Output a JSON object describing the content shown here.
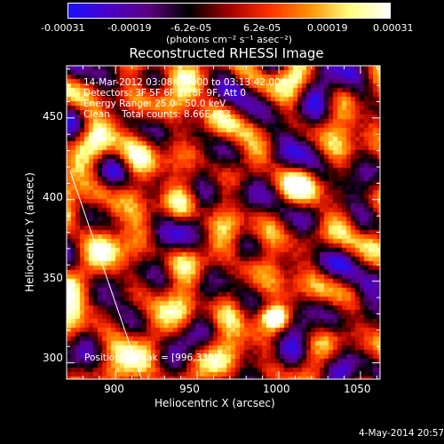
{
  "colorbar": {
    "tick_labels": [
      "-0.00031",
      "-0.00019",
      "-6.2e-05",
      "6.2e-05",
      "0.00019",
      "0.00031"
    ],
    "units_label": "(photons cm⁻² s⁻¹ asec⁻²)",
    "range": [
      -0.00031,
      0.00031
    ],
    "colors": [
      "#1a12ff",
      "#4a00c8",
      "#5c0080",
      "#000000",
      "#a00000",
      "#ff3000",
      "#ff9000",
      "#ffff80",
      "#ffffff"
    ]
  },
  "image": {
    "title": "Reconstructed RHESSI Image",
    "info_lines": [
      "14-Mar-2012 03:08:24.000 to 03:13:42.000",
      "Detectors: 3F 5F 6F 7F 8F 9F, Att 0",
      "Energy Range: 25.0 - 50.0 keV",
      "Clean    Total counts: 8.66E+03"
    ],
    "peak_label": "Position of Peak = [996,330]",
    "peak": {
      "x": 996,
      "y": 330
    }
  },
  "axes": {
    "xlabel": "Heliocentric X (arcsec)",
    "ylabel": "Heliocentric Y (arcsec)",
    "xticks": [
      "900",
      "950",
      "1000",
      "1050"
    ],
    "yticks": [
      "300",
      "350",
      "400",
      "450"
    ],
    "xlim": [
      870,
      1062
    ],
    "ylim": [
      290,
      482
    ]
  },
  "footer": {
    "date": "4-May-2014 20:57"
  }
}
